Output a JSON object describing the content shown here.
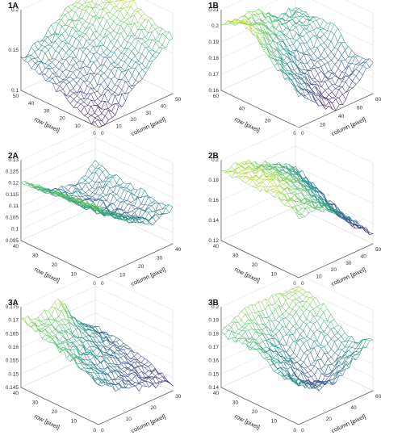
{
  "figure": {
    "panels": [
      {
        "label": "1A",
        "xlabel": "column [pixel]",
        "ylabel": "row [pixel]",
        "xticks": [
          "0",
          "10",
          "20",
          "30",
          "40",
          "50"
        ],
        "yticks": [
          "0",
          "10",
          "20",
          "30",
          "40",
          "50"
        ],
        "zticks": [
          "0.1",
          "0.15",
          "0.2"
        ]
      },
      {
        "label": "1B",
        "xlabel": "column [pixel]",
        "ylabel": "row [pixel]",
        "xticks": [
          "0",
          "20",
          "40",
          "60",
          "80"
        ],
        "yticks": [
          "0",
          "20",
          "40",
          "60"
        ],
        "zticks": [
          "0.16",
          "0.17",
          "0.18",
          "0.19",
          "0.2",
          "0.21"
        ]
      },
      {
        "label": "2A",
        "xlabel": "column [pixel]",
        "ylabel": "row [pixel]",
        "xticks": [
          "0",
          "10",
          "20",
          "30",
          "40"
        ],
        "yticks": [
          "0",
          "10",
          "20",
          "30",
          "40"
        ],
        "zticks": [
          "0.095",
          "0.1",
          "0.105",
          "0.11",
          "0.115",
          "0.12",
          "0.125",
          "0.13"
        ]
      },
      {
        "label": "2B",
        "xlabel": "column [pixel]",
        "ylabel": "row [pixel]",
        "xticks": [
          "0",
          "10",
          "20",
          "30",
          "40",
          "50"
        ],
        "yticks": [
          "0",
          "10",
          "20",
          "30",
          "40"
        ],
        "zticks": [
          "0.12",
          "0.14",
          "0.16",
          "0.18",
          "0.2"
        ]
      },
      {
        "label": "3A",
        "xlabel": "column [pixel]",
        "ylabel": "row [pixel]",
        "xticks": [
          "0",
          "10",
          "20",
          "30"
        ],
        "yticks": [
          "0",
          "10",
          "20",
          "30",
          "40"
        ],
        "zticks": [
          "0.145",
          "0.15",
          "0.155",
          "0.16",
          "0.165",
          "0.17",
          "0.175"
        ]
      },
      {
        "label": "3B",
        "xlabel": "column [pixel]",
        "ylabel": "row [pixel]",
        "xticks": [
          "0",
          "20",
          "40",
          "60"
        ],
        "yticks": [
          "0",
          "10",
          "20",
          "30",
          "40"
        ],
        "zticks": [
          "0.14",
          "0.15",
          "0.16",
          "0.17",
          "0.18",
          "0.19",
          "0.2"
        ]
      }
    ]
  },
  "chart_data": [
    {
      "type": "surface",
      "title": "1A",
      "xlabel": "column [pixel]",
      "ylabel": "row [pixel]",
      "xlim": [
        0,
        50
      ],
      "ylim": [
        0,
        50
      ],
      "zlim": [
        0.1,
        0.2
      ],
      "colormap": "viridis",
      "grid": true,
      "z": [
        [
          0.1,
          0.11,
          0.13,
          0.15,
          0.17
        ],
        [
          0.11,
          0.12,
          0.14,
          0.16,
          0.18
        ],
        [
          0.12,
          0.13,
          0.15,
          0.17,
          0.19
        ],
        [
          0.13,
          0.14,
          0.16,
          0.18,
          0.19
        ],
        [
          0.14,
          0.15,
          0.17,
          0.18,
          0.2
        ]
      ]
    },
    {
      "type": "surface",
      "title": "1B",
      "xlabel": "column [pixel]",
      "ylabel": "row [pixel]",
      "xlim": [
        0,
        80
      ],
      "ylim": [
        0,
        60
      ],
      "zlim": [
        0.16,
        0.21
      ],
      "colormap": "viridis",
      "grid": true,
      "z": [
        [
          0.18,
          0.17,
          0.16,
          0.17,
          0.18
        ],
        [
          0.19,
          0.18,
          0.17,
          0.17,
          0.18
        ],
        [
          0.2,
          0.19,
          0.18,
          0.18,
          0.19
        ],
        [
          0.21,
          0.2,
          0.19,
          0.19,
          0.19
        ],
        [
          0.2,
          0.2,
          0.2,
          0.19,
          0.19
        ]
      ]
    },
    {
      "type": "surface",
      "title": "2A",
      "xlabel": "column [pixel]",
      "ylabel": "row [pixel]",
      "xlim": [
        0,
        40
      ],
      "ylim": [
        0,
        40
      ],
      "zlim": [
        0.095,
        0.13
      ],
      "colormap": "viridis",
      "grid": true,
      "z": [
        [
          0.125,
          0.118,
          0.112,
          0.108,
          0.11
        ],
        [
          0.124,
          0.117,
          0.11,
          0.107,
          0.111
        ],
        [
          0.123,
          0.116,
          0.108,
          0.106,
          0.112
        ],
        [
          0.122,
          0.115,
          0.109,
          0.107,
          0.113
        ],
        [
          0.121,
          0.114,
          0.11,
          0.109,
          0.114
        ]
      ]
    },
    {
      "type": "surface",
      "title": "2B",
      "xlabel": "column [pixel]",
      "ylabel": "row [pixel]",
      "xlim": [
        0,
        50
      ],
      "ylim": [
        0,
        40
      ],
      "zlim": [
        0.12,
        0.2
      ],
      "colormap": "viridis",
      "grid": true,
      "z": [
        [
          0.18,
          0.18,
          0.17,
          0.15,
          0.13
        ],
        [
          0.19,
          0.18,
          0.17,
          0.15,
          0.13
        ],
        [
          0.19,
          0.19,
          0.18,
          0.16,
          0.14
        ],
        [
          0.19,
          0.19,
          0.18,
          0.17,
          0.15
        ],
        [
          0.19,
          0.19,
          0.18,
          0.17,
          0.16
        ]
      ]
    },
    {
      "type": "surface",
      "title": "3A",
      "xlabel": "column [pixel]",
      "ylabel": "row [pixel]",
      "xlim": [
        0,
        30
      ],
      "ylim": [
        0,
        40
      ],
      "zlim": [
        0.145,
        0.175
      ],
      "colormap": "viridis",
      "grid": true,
      "z": [
        [
          0.16,
          0.155,
          0.152,
          0.15,
          0.148
        ],
        [
          0.163,
          0.158,
          0.155,
          0.152,
          0.15
        ],
        [
          0.166,
          0.162,
          0.158,
          0.155,
          0.152
        ],
        [
          0.168,
          0.166,
          0.162,
          0.158,
          0.154
        ],
        [
          0.17,
          0.168,
          0.172,
          0.16,
          0.155
        ]
      ]
    },
    {
      "type": "surface",
      "title": "3B",
      "xlabel": "column [pixel]",
      "ylabel": "row [pixel]",
      "xlim": [
        0,
        60
      ],
      "ylim": [
        0,
        40
      ],
      "zlim": [
        0.14,
        0.2
      ],
      "colormap": "viridis",
      "grid": true,
      "z": [
        [
          0.17,
          0.16,
          0.16,
          0.17,
          0.18
        ],
        [
          0.17,
          0.16,
          0.15,
          0.16,
          0.17
        ],
        [
          0.18,
          0.17,
          0.16,
          0.17,
          0.18
        ],
        [
          0.18,
          0.18,
          0.17,
          0.18,
          0.19
        ],
        [
          0.18,
          0.19,
          0.19,
          0.19,
          0.19
        ]
      ]
    }
  ]
}
